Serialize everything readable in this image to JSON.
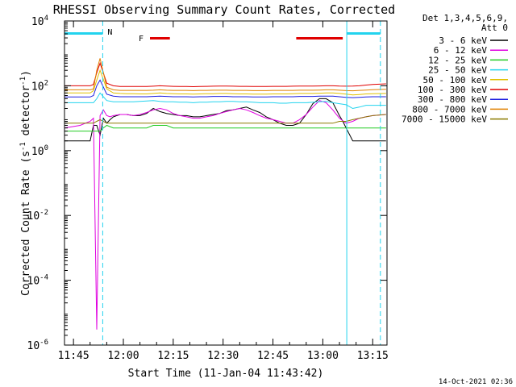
{
  "chart_data": {
    "type": "line",
    "title": "RHESSI Observing Summary Count Rates, Corrected",
    "xlabel": "Start Time (11-Jan-04 11:43:42)",
    "ylabel_main": "Corrected Count Rate (s",
    "ylabel_sup1": "-1",
    "ylabel_mid": " detector",
    "ylabel_sup2": "-1",
    "ylabel_end": ")",
    "y_scale": "log",
    "ylim": [
      1e-06,
      10000
    ],
    "xlim_minutes": [
      -0.7,
      96.3
    ],
    "x_ticks": [
      {
        "value": 2,
        "label": "11:45"
      },
      {
        "value": 17,
        "label": "12:00"
      },
      {
        "value": 32,
        "label": "12:15"
      },
      {
        "value": 47,
        "label": "12:30"
      },
      {
        "value": 62,
        "label": "12:45"
      },
      {
        "value": 77,
        "label": "13:00"
      },
      {
        "value": 92,
        "label": "13:15"
      }
    ],
    "y_ticks": [
      {
        "exp": 4,
        "label": "10",
        "sup": "4"
      },
      {
        "exp": 2,
        "label": "10",
        "sup": "2"
      },
      {
        "exp": 0,
        "label": "10",
        "sup": "0"
      },
      {
        "exp": -2,
        "label": "10",
        "sup": "-2"
      },
      {
        "exp": -4,
        "label": "10",
        "sup": "-4"
      },
      {
        "exp": -6,
        "label": "10",
        "sup": "-6"
      }
    ],
    "legend_header": [
      "Det 1,3,4,5,6,9,",
      "Att 0"
    ],
    "legend_position": "right",
    "flags": {
      "night_label": "N",
      "flare_label": "F",
      "night_color": "#22d3ee",
      "flare_color": "#e00000",
      "night_intervals": [
        [
          -0.7,
          10.8
        ],
        [
          84.2,
          94.3
        ]
      ],
      "flare_intervals": [
        [
          25,
          31
        ],
        [
          69,
          83
        ]
      ],
      "night_boundaries_solid": [
        -0.7,
        84.2
      ],
      "night_boundaries_dashed": [
        10.8,
        94.3
      ]
    },
    "series": [
      {
        "name": "3 - 6 keV",
        "color": "#000000",
        "x": [
          -0.7,
          7,
          8,
          9,
          10,
          11,
          12,
          13,
          14,
          16,
          18,
          20,
          22,
          24,
          26,
          28,
          30,
          32,
          34,
          36,
          38,
          40,
          42,
          44,
          46,
          48,
          50,
          52,
          54,
          56,
          58,
          60,
          62,
          64,
          66,
          68,
          70,
          72,
          74,
          76,
          78,
          80,
          82,
          83,
          84,
          86,
          90,
          96
        ],
        "y": [
          2,
          2,
          6,
          6,
          3,
          10,
          7,
          9,
          11,
          13,
          13,
          12,
          12,
          14,
          20,
          16,
          14,
          13,
          12,
          12,
          11,
          11,
          12,
          13,
          14,
          17,
          18,
          20,
          22,
          18,
          15,
          11,
          9,
          7,
          6,
          6,
          7,
          13,
          28,
          40,
          40,
          30,
          12,
          8,
          5,
          2,
          2,
          2
        ]
      },
      {
        "name": "6 - 12 keV",
        "color": "#e000e0",
        "x": [
          -0.7,
          4,
          7,
          8,
          9,
          10,
          11,
          12,
          13,
          14,
          16,
          18,
          20,
          22,
          24,
          26,
          28,
          30,
          32,
          34,
          36,
          38,
          40,
          42,
          44,
          46,
          48,
          50,
          52,
          54,
          56,
          58,
          60,
          62,
          64,
          66,
          68,
          70,
          72,
          74,
          76,
          78,
          80,
          82,
          84,
          86,
          88,
          90,
          92,
          96
        ],
        "y": [
          5,
          6,
          8,
          10,
          3e-06,
          12,
          18,
          12,
          11,
          12,
          13,
          13,
          12,
          13,
          15,
          18,
          20,
          18,
          14,
          12,
          11,
          10,
          10,
          11,
          12,
          14,
          16,
          18,
          20,
          18,
          15,
          12,
          10,
          9,
          8,
          7,
          7,
          9,
          13,
          22,
          35,
          30,
          18,
          10,
          7,
          8,
          10,
          11,
          12,
          13
        ]
      },
      {
        "name": "12 - 25 keV",
        "color": "#22cc22",
        "x": [
          -0.7,
          5,
          7,
          8,
          9,
          10,
          11,
          12,
          14,
          16,
          18,
          20,
          22,
          24,
          26,
          28,
          30,
          32,
          34,
          36,
          38,
          40,
          42,
          44,
          46,
          48,
          50,
          52,
          54,
          56,
          58,
          60,
          62,
          64,
          66,
          68,
          70,
          72,
          74,
          76,
          78,
          80,
          82,
          84,
          86,
          88,
          90,
          92,
          96
        ],
        "y": [
          4,
          4,
          4,
          4,
          4,
          4,
          5,
          6,
          5,
          5,
          5,
          5,
          5,
          5,
          6,
          6,
          6,
          5,
          5,
          5,
          5,
          5,
          5,
          5,
          5,
          5,
          5,
          5,
          5,
          5,
          5,
          5,
          5,
          5,
          5,
          5,
          5,
          5,
          5,
          5,
          5,
          5,
          5,
          5,
          5,
          5,
          5,
          5,
          5
        ]
      },
      {
        "name": "25 - 50 keV",
        "color": "#22d3ee",
        "x": [
          -0.7,
          5,
          7,
          8,
          9,
          10,
          12,
          14,
          16,
          18,
          20,
          22,
          24,
          26,
          28,
          30,
          32,
          34,
          36,
          38,
          40,
          42,
          44,
          46,
          48,
          50,
          52,
          54,
          56,
          58,
          60,
          62,
          64,
          66,
          68,
          70,
          72,
          74,
          76,
          78,
          80,
          82,
          84,
          86,
          88,
          90,
          92,
          96
        ],
        "y": [
          30,
          30,
          30,
          30,
          40,
          60,
          35,
          32,
          32,
          32,
          32,
          33,
          34,
          35,
          33,
          32,
          32,
          31,
          31,
          30,
          31,
          31,
          32,
          32,
          33,
          33,
          32,
          32,
          31,
          30,
          30,
          30,
          29,
          29,
          30,
          30,
          30,
          31,
          32,
          33,
          30,
          28,
          26,
          20,
          22,
          25,
          25,
          25
        ]
      },
      {
        "name": "50 - 100 keV",
        "color": "#e0c000",
        "x": [
          -0.7,
          5,
          7,
          8,
          9,
          10,
          12,
          14,
          16,
          18,
          20,
          22,
          24,
          26,
          28,
          30,
          32,
          34,
          36,
          38,
          40,
          42,
          44,
          46,
          48,
          50,
          52,
          54,
          56,
          58,
          60,
          62,
          64,
          66,
          68,
          70,
          72,
          74,
          76,
          78,
          80,
          82,
          84,
          86,
          88,
          90,
          92,
          96
        ],
        "y": [
          60,
          60,
          60,
          70,
          150,
          300,
          80,
          60,
          58,
          57,
          57,
          56,
          56,
          58,
          60,
          58,
          57,
          56,
          56,
          55,
          56,
          57,
          57,
          58,
          58,
          57,
          56,
          56,
          55,
          55,
          55,
          56,
          56,
          56,
          57,
          58,
          58,
          58,
          59,
          60,
          60,
          58,
          55,
          52,
          54,
          56,
          57,
          58
        ]
      },
      {
        "name": "100 - 300 keV",
        "color": "#e00000",
        "x": [
          -0.7,
          5,
          7,
          8,
          9,
          10,
          12,
          14,
          16,
          18,
          20,
          22,
          24,
          26,
          28,
          30,
          32,
          34,
          36,
          38,
          40,
          42,
          44,
          46,
          48,
          50,
          52,
          54,
          56,
          58,
          60,
          62,
          64,
          66,
          68,
          70,
          72,
          74,
          76,
          78,
          80,
          82,
          84,
          86,
          88,
          90,
          92,
          96
        ],
        "y": [
          100,
          100,
          100,
          110,
          250,
          500,
          120,
          100,
          95,
          95,
          95,
          95,
          95,
          97,
          100,
          98,
          96,
          95,
          95,
          94,
          95,
          96,
          97,
          98,
          98,
          97,
          96,
          96,
          95,
          95,
          95,
          96,
          96,
          96,
          97,
          98,
          98,
          98,
          99,
          100,
          100,
          98,
          97,
          98,
          100,
          105,
          110,
          115
        ]
      },
      {
        "name": "300 - 800 keV",
        "color": "#2020e0",
        "x": [
          -0.7,
          5,
          7,
          8,
          9,
          10,
          12,
          14,
          16,
          18,
          20,
          22,
          24,
          26,
          28,
          30,
          32,
          34,
          36,
          38,
          40,
          42,
          44,
          46,
          48,
          50,
          52,
          54,
          56,
          58,
          60,
          62,
          64,
          66,
          68,
          70,
          72,
          74,
          76,
          78,
          80,
          82,
          84,
          86,
          88,
          90,
          92,
          96
        ],
        "y": [
          45,
          45,
          45,
          50,
          100,
          150,
          55,
          48,
          46,
          46,
          46,
          46,
          46,
          47,
          48,
          47,
          46,
          46,
          46,
          45,
          46,
          46,
          47,
          47,
          47,
          46,
          46,
          46,
          45,
          45,
          45,
          46,
          46,
          46,
          46,
          47,
          47,
          47,
          48,
          48,
          48,
          46,
          44,
          43,
          44,
          45,
          46,
          46
        ]
      },
      {
        "name": "800 - 7000 keV",
        "color": "#e08000",
        "x": [
          -0.7,
          5,
          7,
          8,
          9,
          10,
          12,
          14,
          16,
          18,
          20,
          22,
          24,
          26,
          28,
          30,
          32,
          34,
          36,
          38,
          40,
          42,
          44,
          46,
          48,
          50,
          52,
          54,
          56,
          58,
          60,
          62,
          64,
          66,
          68,
          70,
          72,
          74,
          76,
          78,
          80,
          82,
          84,
          86,
          88,
          90,
          92,
          96
        ],
        "y": [
          75,
          75,
          75,
          80,
          300,
          700,
          90,
          75,
          72,
          72,
          72,
          72,
          72,
          73,
          75,
          73,
          72,
          72,
          72,
          71,
          72,
          72,
          73,
          73,
          73,
          72,
          72,
          72,
          71,
          71,
          71,
          72,
          72,
          72,
          72,
          73,
          73,
          73,
          74,
          75,
          75,
          73,
          71,
          70,
          72,
          74,
          76,
          78
        ]
      },
      {
        "name": "7000 - 15000 keV",
        "color": "#8b7a00",
        "x": [
          -0.7,
          5,
          7,
          8,
          9,
          10,
          12,
          14,
          16,
          18,
          20,
          22,
          24,
          26,
          28,
          30,
          32,
          34,
          36,
          38,
          40,
          42,
          44,
          46,
          48,
          50,
          52,
          54,
          56,
          58,
          60,
          62,
          64,
          66,
          68,
          70,
          72,
          74,
          76,
          78,
          80,
          82,
          84,
          86,
          88,
          90,
          92,
          96
        ],
        "y": [
          7,
          7,
          7,
          7,
          8,
          9,
          7,
          7,
          7,
          7,
          7,
          7,
          7,
          7,
          7,
          7,
          7,
          7,
          7,
          7,
          7,
          7,
          7,
          7,
          7,
          7,
          7,
          7,
          7,
          7,
          7,
          7,
          7,
          7,
          7,
          7,
          7,
          7,
          7,
          7,
          7,
          8,
          8,
          9,
          10,
          11,
          12,
          13
        ]
      }
    ]
  },
  "footer": {
    "timestamp": "14-Oct-2021 02:36"
  }
}
